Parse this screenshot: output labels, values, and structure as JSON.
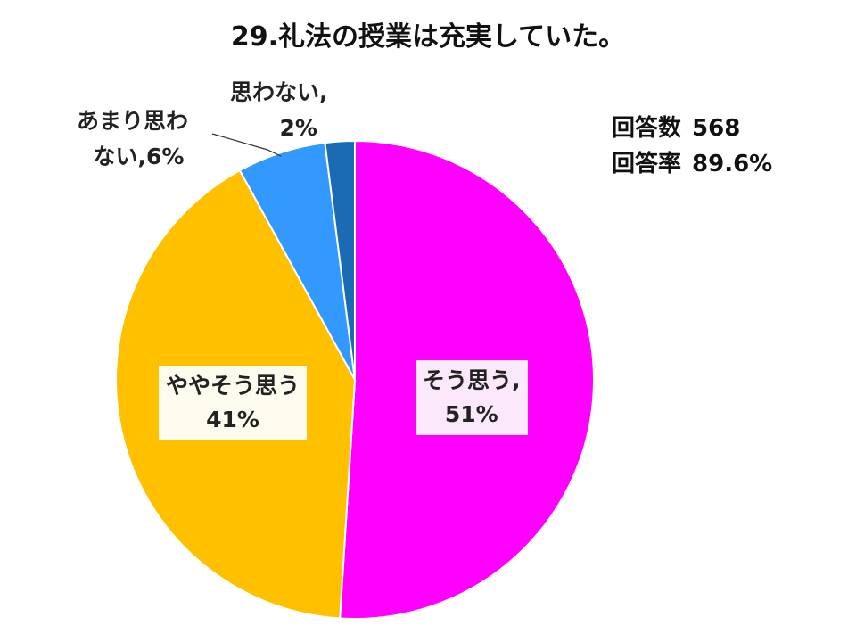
{
  "chart_data": {
    "type": "pie",
    "title": "29.礼法の授業は充実していた。",
    "slices": [
      {
        "label": "そう思う,",
        "percent_label": "51%",
        "value": 51,
        "color": "#FF00FF",
        "label_bg": "#FCE8FB"
      },
      {
        "label": "ややそう思う",
        "percent_label": "41%",
        "value": 41,
        "color": "#FFC000",
        "label_bg": "#FDFAEE"
      },
      {
        "label": "あまり思わない,6%",
        "label_line1": "あまり思わ",
        "label_line2": "ない,6%",
        "value": 6,
        "color": "#3399FF"
      },
      {
        "label": "思わない,",
        "percent_label": "2%",
        "value": 2,
        "color": "#1A6BB3"
      }
    ]
  },
  "stats": {
    "count_label": "回答数",
    "count_value": "568",
    "rate_label": "回答率",
    "rate_value": "89.6%"
  }
}
